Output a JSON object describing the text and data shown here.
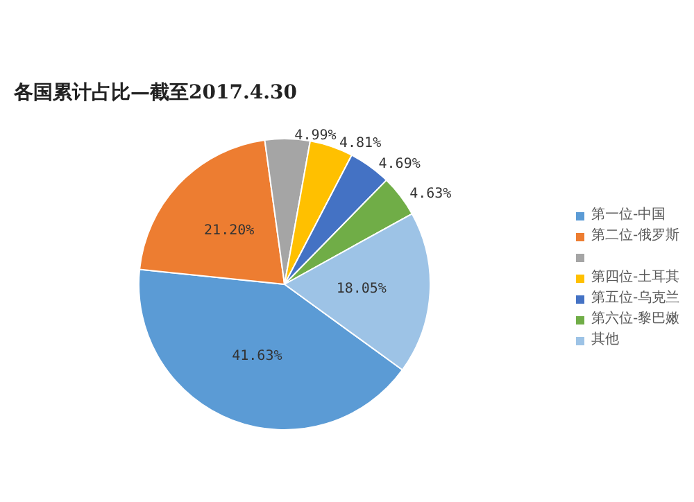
{
  "chart_data": {
    "type": "pie",
    "title": "各国累计占比—截至2017.4.30",
    "categories": [
      "第一位-中国",
      "第二位-俄罗斯",
      null,
      "第四位-土耳其",
      "第五位-乌克兰",
      "第六位-黎巴嫩",
      "其他"
    ],
    "values": [
      41.63,
      21.2,
      4.99,
      4.81,
      4.69,
      4.63,
      18.05
    ],
    "value_labels": [
      "41.63%",
      "21.20%",
      "4.99%",
      "4.81%",
      "4.69%",
      "4.63%",
      "18.05%"
    ],
    "colors": [
      "#5b9bd5",
      "#ed7d31",
      "#a5a5a5",
      "#ffc000",
      "#4472c4",
      "#70ad47",
      "#9dc3e6"
    ],
    "legend": "right"
  }
}
